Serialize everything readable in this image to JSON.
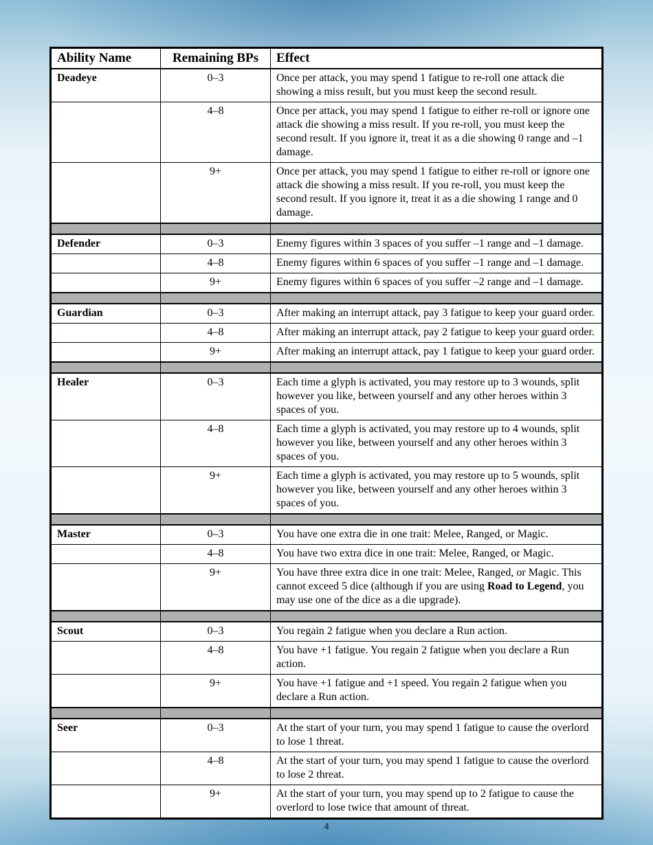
{
  "page_number": "4",
  "columns": {
    "name": "Ability Name",
    "bp": "Remaining BPs",
    "effect": "Effect"
  },
  "abilities": [
    {
      "name": "Deadeye",
      "rows": [
        {
          "bp": "0–3",
          "effect": "Once per attack, you may spend 1 fatigue to re-roll one attack die showing a miss result, but you must keep the second result."
        },
        {
          "bp": "4–8",
          "effect": "Once per attack, you may spend 1 fatigue to either re-roll or ignore one attack die showing a miss result. If you re-roll, you must keep the second result. If you ignore it, treat it as a die showing 0 range and –1 damage."
        },
        {
          "bp": "9+",
          "effect": "Once per attack, you may spend 1 fatigue to either re-roll or ignore one attack die showing a miss result. If you re-roll, you must keep the second result. If you ignore it, treat it as a die showing 1 range and 0 damage."
        }
      ]
    },
    {
      "name": "Defender",
      "rows": [
        {
          "bp": "0–3",
          "effect": "Enemy figures within 3 spaces of you suffer –1 range and –1 damage."
        },
        {
          "bp": "4–8",
          "effect": "Enemy figures within 6 spaces of you suffer –1 range and –1 damage."
        },
        {
          "bp": "9+",
          "effect": "Enemy figures within 6 spaces of you suffer –2 range and –1 damage."
        }
      ]
    },
    {
      "name": "Guardian",
      "rows": [
        {
          "bp": "0–3",
          "effect": "After making an interrupt attack, pay 3 fatigue to keep your guard order."
        },
        {
          "bp": "4–8",
          "effect": "After making an interrupt attack, pay 2 fatigue to keep your guard order."
        },
        {
          "bp": "9+",
          "effect": "After making an interrupt attack, pay 1 fatigue to keep your guard order."
        }
      ]
    },
    {
      "name": "Healer",
      "rows": [
        {
          "bp": "0–3",
          "effect": "Each time a glyph is activated, you may restore up to 3 wounds, split however you like, between yourself and any other heroes within 3 spaces of you."
        },
        {
          "bp": "4–8",
          "effect": "Each time a glyph is activated, you may restore up to 4 wounds, split however you like, between yourself and any other heroes within 3 spaces of you."
        },
        {
          "bp": "9+",
          "effect": "Each time a glyph is activated, you may restore up to 5 wounds, split however you like, between yourself and any other heroes within 3 spaces of you."
        }
      ]
    },
    {
      "name": "Master",
      "rows": [
        {
          "bp": "0–3",
          "effect": "You have one extra die in one trait: Melee, Ranged, or Magic."
        },
        {
          "bp": "4–8",
          "effect": "You have two extra dice in one trait: Melee, Ranged, or Magic."
        },
        {
          "bp": "9+",
          "effect_parts": [
            "You have three extra dice in one trait: Melee, Ranged, or Magic. This cannot exceed 5 dice (although if you are using ",
            {
              "bold": "Road to Legend"
            },
            ", you may use one of the dice as a die upgrade)."
          ]
        }
      ]
    },
    {
      "name": "Scout",
      "rows": [
        {
          "bp": "0–3",
          "effect": "You regain 2 fatigue when you declare a Run action."
        },
        {
          "bp": "4–8",
          "effect": "You have +1 fatigue. You regain 2 fatigue when you declare a Run action."
        },
        {
          "bp": "9+",
          "effect": "You have +1 fatigue and +1 speed. You regain 2 fatigue when you declare a Run action."
        }
      ]
    },
    {
      "name": "Seer",
      "rows": [
        {
          "bp": "0–3",
          "effect": "At the start of your turn, you may spend 1 fatigue to cause the overlord to lose 1 threat."
        },
        {
          "bp": "4–8",
          "effect": "At the start of your turn, you may spend 1 fatigue to cause the overlord to lose 2 threat."
        },
        {
          "bp": "9+",
          "effect": "At the start of your turn, you may spend up to 2 fatigue to cause the overlord to lose twice that amount of threat."
        }
      ]
    }
  ]
}
